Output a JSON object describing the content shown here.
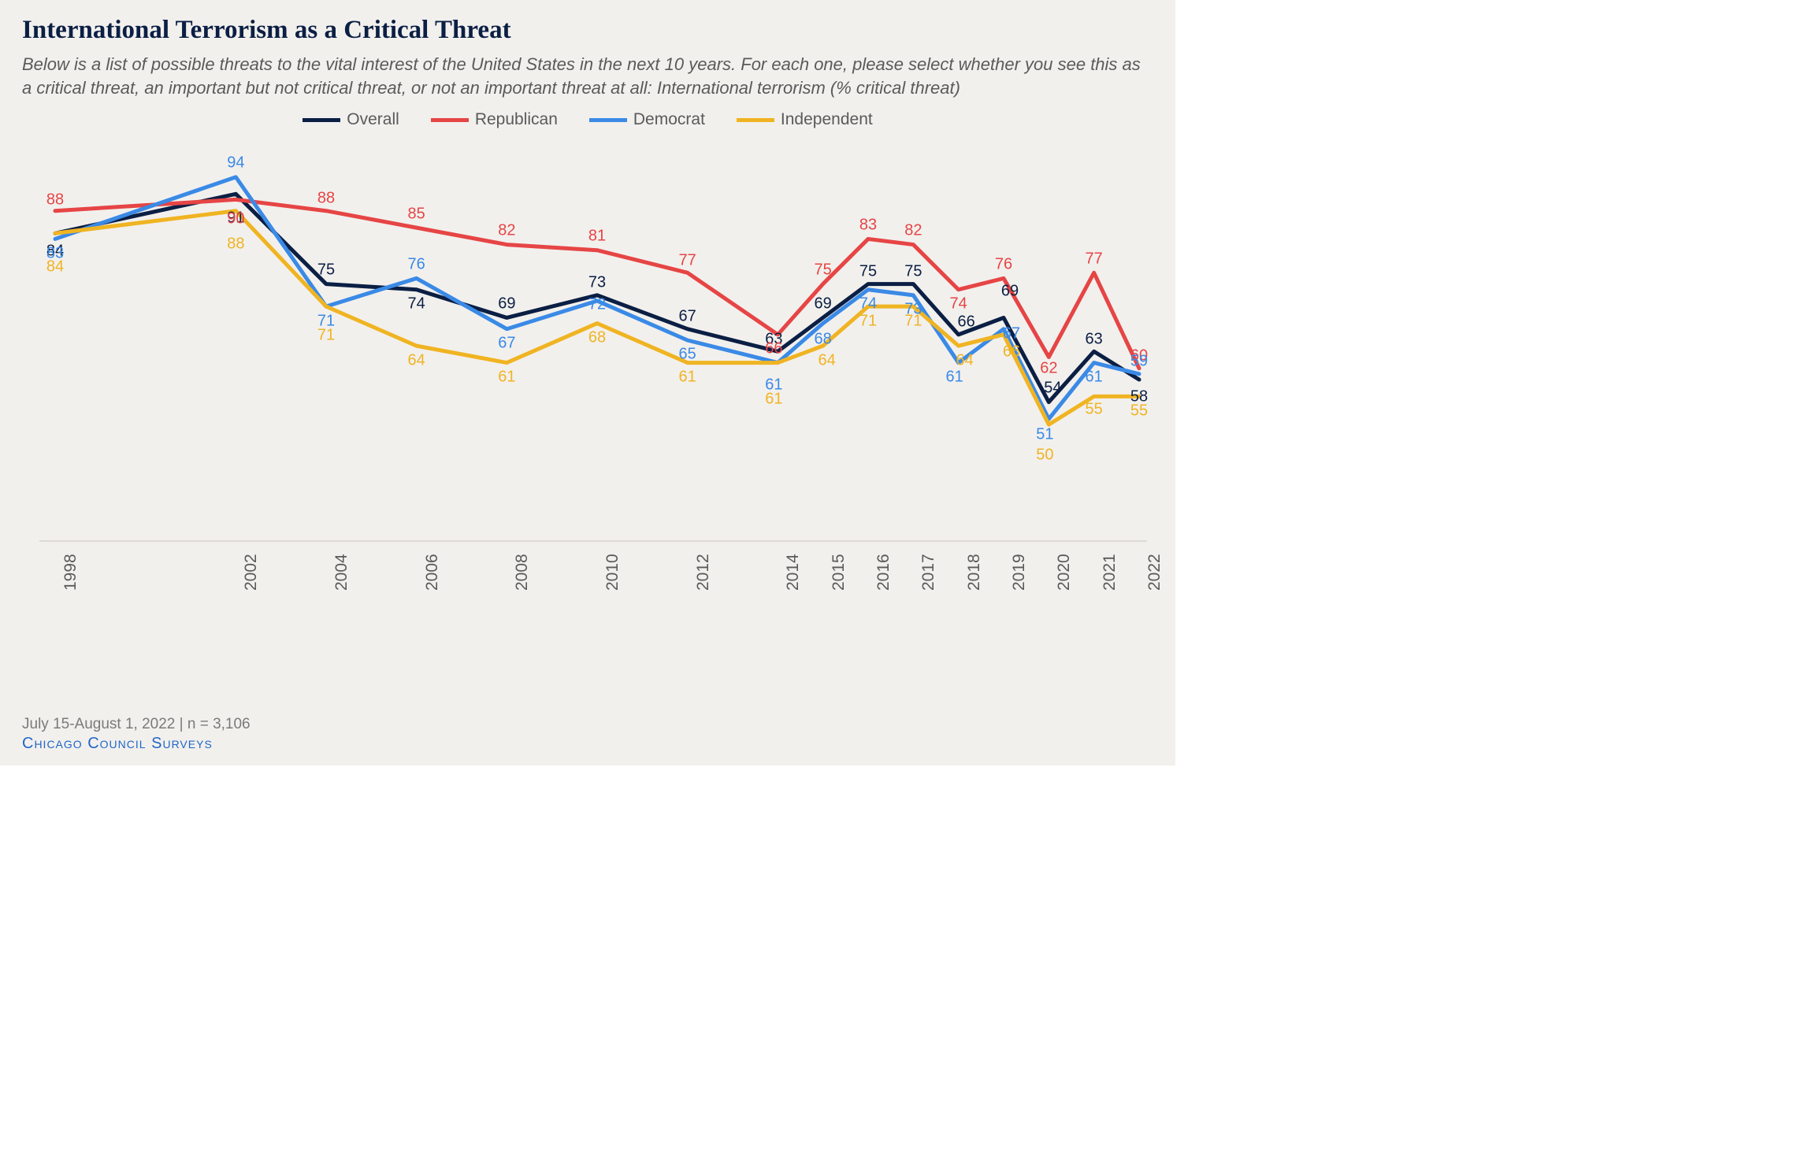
{
  "title": "International Terrorism as a Critical Threat",
  "subtitle": "Below is a list of possible threats to the vital interest of the United States in the next 10 years. For each one, please select whether you see this as a critical threat, an important but not critical threat, or not an important threat at all: International terrorism (% critical threat)",
  "footnote": "July 15-August 1, 2022 | n = 3,106",
  "source": "Chicago Council Surveys",
  "background_color": "#f2f0ed",
  "chart": {
    "type": "line",
    "years": [
      1998,
      2002,
      2004,
      2006,
      2008,
      2010,
      2012,
      2014,
      2015,
      2016,
      2017,
      2018,
      2019,
      2020,
      2021,
      2022
    ],
    "yrange": [
      30,
      100
    ],
    "line_width": 5,
    "axis_color": "#c8c5c0",
    "tick_fontsize": 21,
    "label_fontsize": 20,
    "series": [
      {
        "name": "Overall",
        "color": "#0b1f44",
        "values": [
          84,
          91,
          75,
          74,
          69,
          73,
          67,
          63,
          69,
          75,
          75,
          66,
          69,
          54,
          63,
          58
        ],
        "label_dy": [
          22,
          30,
          -18,
          18,
          -18,
          -16,
          -16,
          -16,
          -18,
          -16,
          -16,
          -16,
          -34,
          -18,
          -16,
          22
        ],
        "label_dx": [
          0,
          0,
          0,
          0,
          0,
          0,
          0,
          -5,
          0,
          0,
          0,
          10,
          8,
          5,
          0,
          0
        ]
      },
      {
        "name": "Republican",
        "color": "#e64545",
        "values": [
          88,
          90,
          88,
          85,
          82,
          81,
          77,
          66,
          75,
          83,
          82,
          74,
          76,
          62,
          77,
          60
        ],
        "label_dy": [
          -14,
          24,
          -16,
          -18,
          -18,
          -18,
          -16,
          18,
          -18,
          -18,
          -18,
          18,
          -18,
          14,
          -18,
          -16
        ],
        "label_dx": [
          0,
          0,
          0,
          0,
          0,
          0,
          0,
          -5,
          0,
          0,
          0,
          0,
          0,
          0,
          0,
          0
        ]
      },
      {
        "name": "Democrat",
        "color": "#3a8ae6",
        "values": [
          83,
          94,
          71,
          76,
          67,
          72,
          65,
          61,
          68,
          74,
          73,
          61,
          67,
          51,
          61,
          59
        ],
        "label_dy": [
          18,
          -18,
          18,
          -18,
          18,
          5,
          18,
          28,
          20,
          18,
          18,
          18,
          6,
          20,
          18,
          -16
        ],
        "label_dx": [
          0,
          0,
          0,
          0,
          0,
          0,
          0,
          -5,
          0,
          0,
          0,
          -5,
          10,
          -5,
          0,
          0
        ]
      },
      {
        "name": "Independent",
        "color": "#f0b422",
        "values": [
          84,
          88,
          71,
          64,
          61,
          68,
          61,
          61,
          64,
          71,
          71,
          64,
          66,
          50,
          55,
          55
        ],
        "label_dy": [
          42,
          42,
          36,
          18,
          18,
          18,
          18,
          46,
          18,
          18,
          18,
          18,
          22,
          38,
          16,
          18
        ],
        "label_dx": [
          0,
          0,
          0,
          0,
          0,
          0,
          0,
          -5,
          5,
          0,
          0,
          8,
          10,
          -5,
          0,
          0
        ]
      }
    ],
    "legend_order": [
      "Overall",
      "Republican",
      "Democrat",
      "Independent"
    ]
  }
}
